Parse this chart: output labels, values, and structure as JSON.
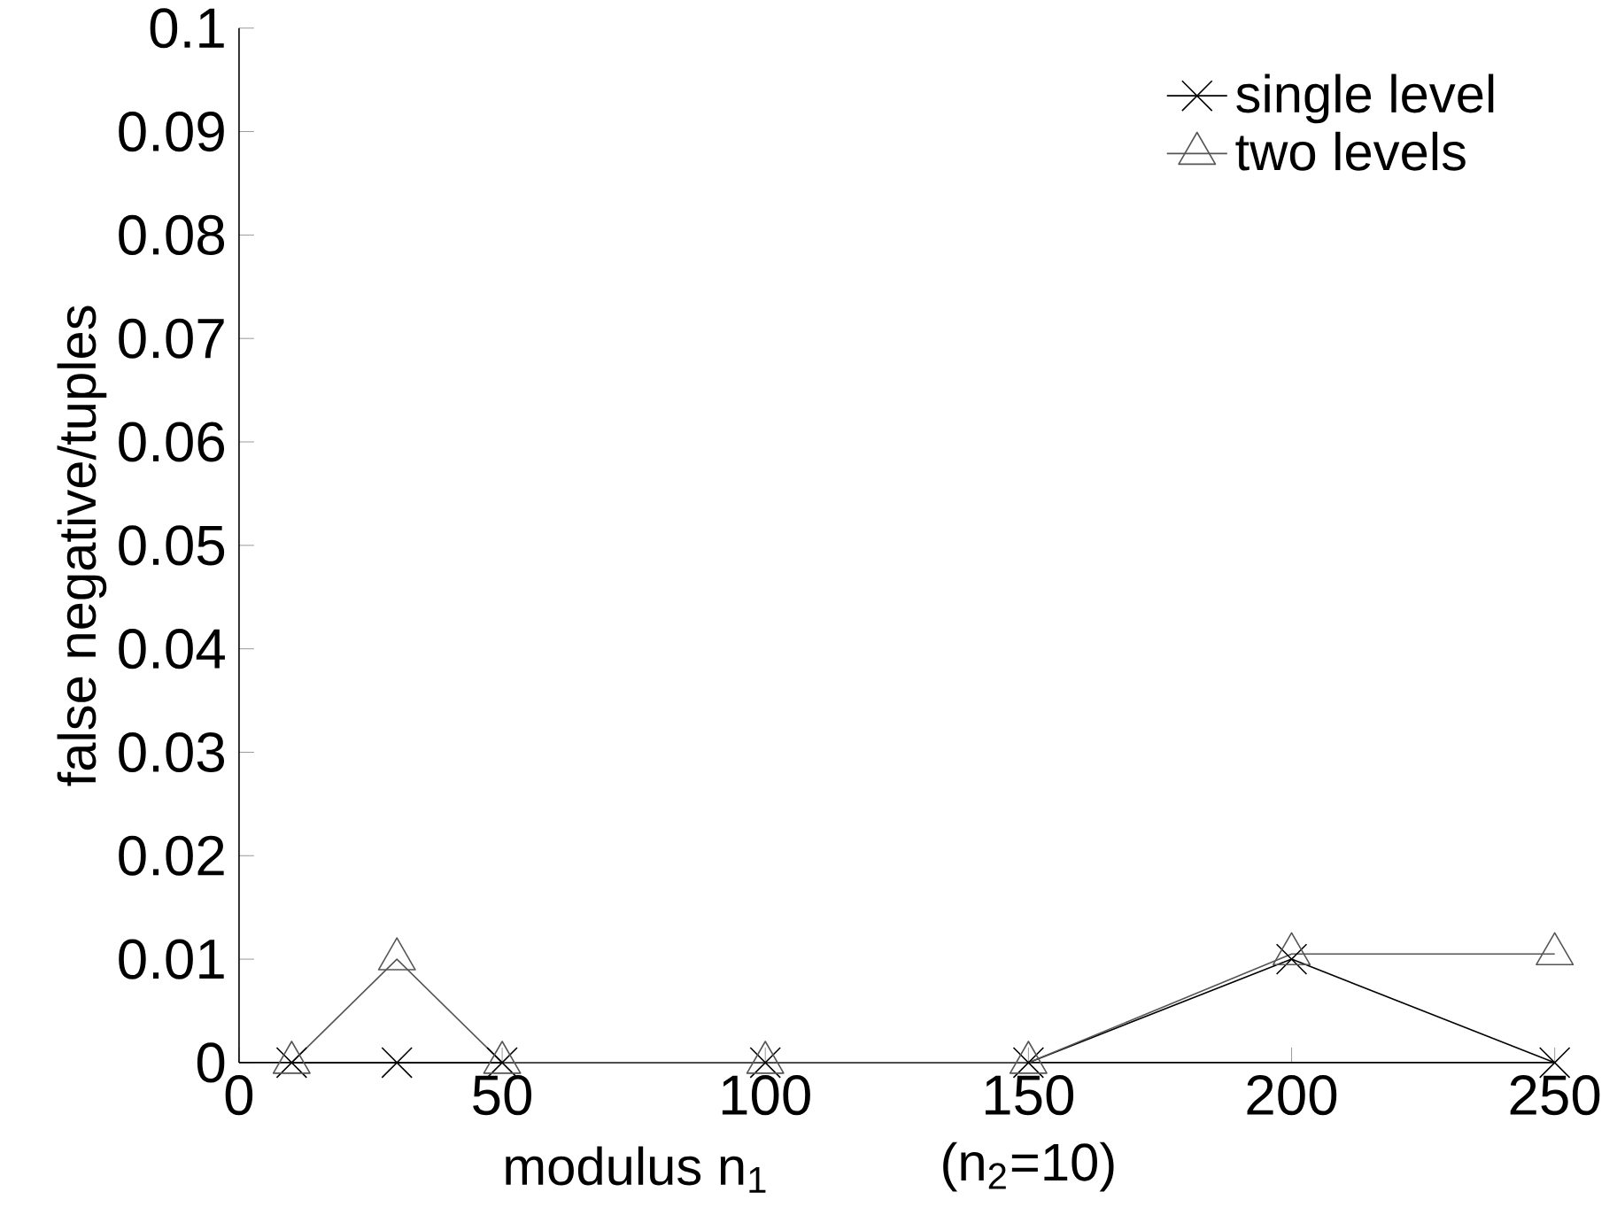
{
  "chart_data": {
    "type": "line",
    "xlabel": "modulus n$_{1}$",
    "ylabel": "false negative/tuples",
    "annotations": [
      "(n$_{2}$=10)"
    ],
    "x": [
      10,
      30,
      50,
      100,
      150,
      200,
      250
    ],
    "series": [
      {
        "name": "single level",
        "color": "#000000",
        "marker": "cross",
        "values": [
          0,
          0,
          0,
          0,
          0,
          0.01,
          0
        ]
      },
      {
        "name": "two levels",
        "color": "#555555",
        "marker": "triangle",
        "values": [
          0,
          0.01,
          0,
          0,
          0,
          0.0105,
          0.0105
        ]
      }
    ],
    "xlim": [
      0,
      250
    ],
    "ylim": [
      0,
      0.1
    ],
    "xticks": [
      0,
      50,
      100,
      150,
      200,
      250
    ],
    "yticks": [
      0,
      0.01,
      0.02,
      0.03,
      0.04,
      0.05,
      0.06,
      0.07,
      0.08,
      0.09,
      0.1
    ],
    "legend": "top right",
    "grid": false,
    "line_style": "solid"
  }
}
